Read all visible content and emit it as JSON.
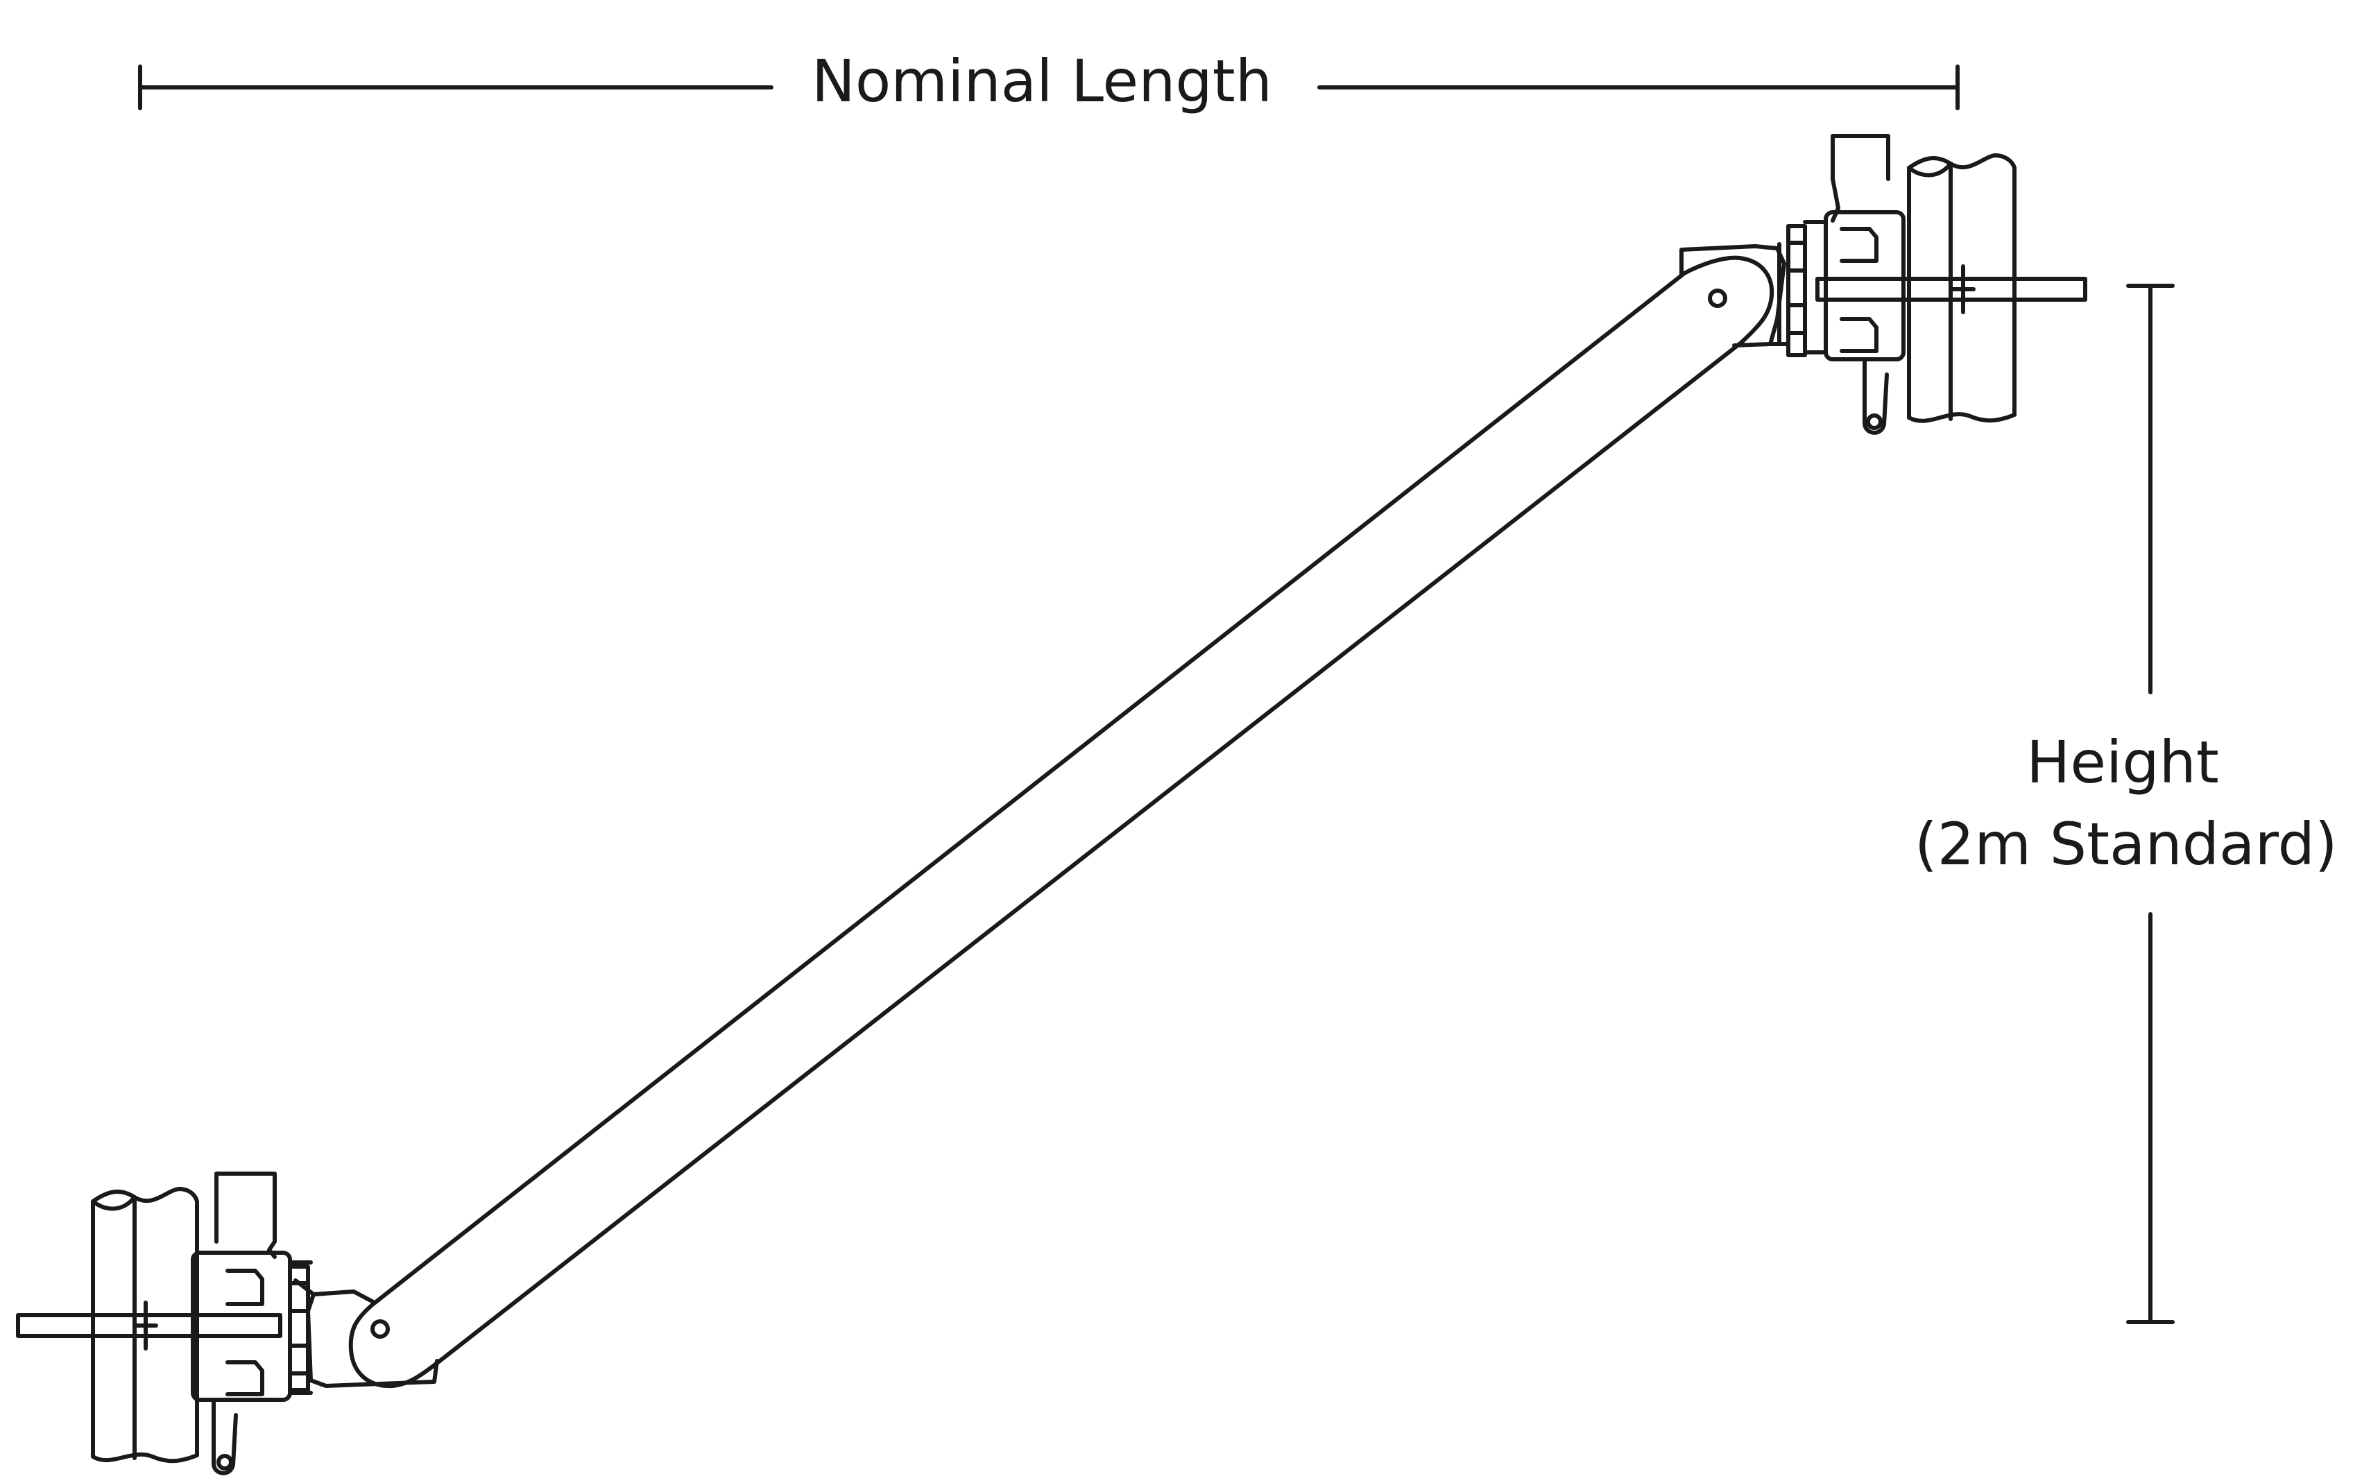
{
  "dimensions": {
    "length_label": "Nominal Length",
    "height_label_line1": "Height",
    "height_label_line2": "(2m Standard)"
  },
  "colors": {
    "line": "#1a1a1a",
    "background": "#ffffff"
  }
}
